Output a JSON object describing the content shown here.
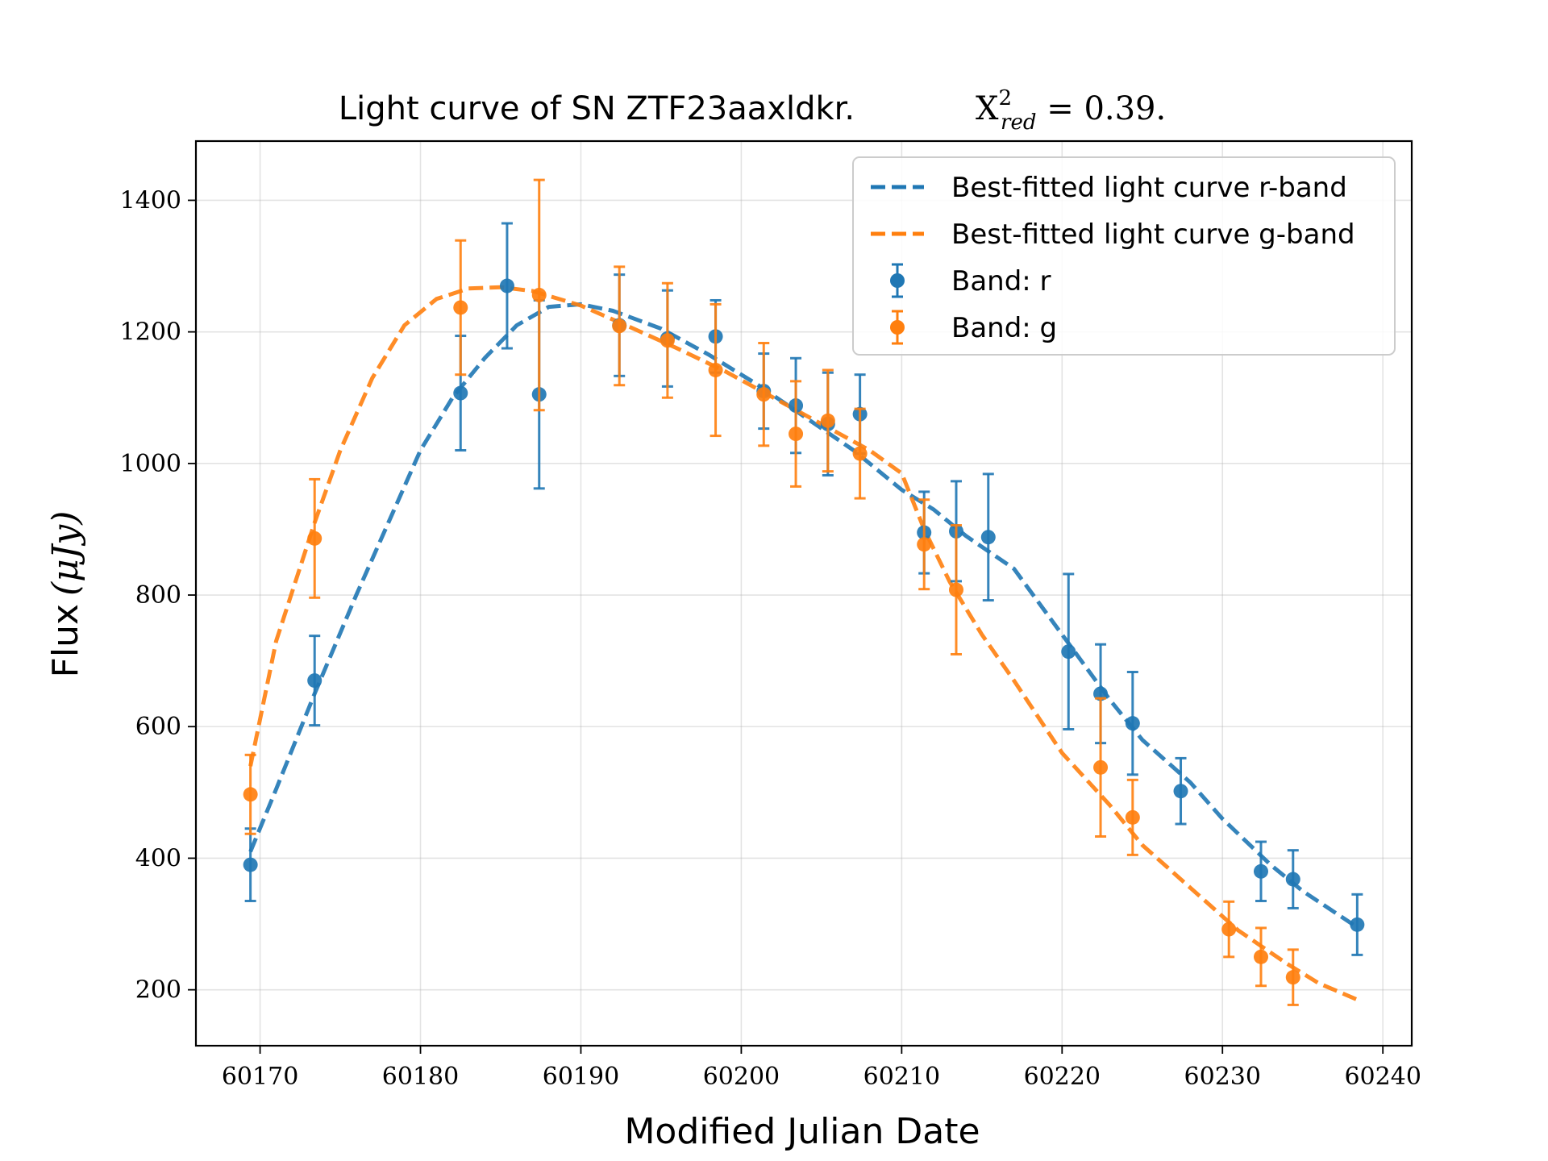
{
  "chart_data": {
    "type": "scatter",
    "title": "Light curve of SN ZTF23aaxldkr.",
    "title_stat": {
      "symbol": "X",
      "sup": "2",
      "sub": "red",
      "rest": " = 0.39."
    },
    "xlabel": "Modified Julian Date",
    "ylabel": "Flux",
    "ylabel_unit": "(μJy)",
    "xlim": [
      60166,
      60241.8
    ],
    "ylim": [
      115,
      1490
    ],
    "xticks": [
      60170,
      60180,
      60190,
      60200,
      60210,
      60220,
      60230,
      60240
    ],
    "yticks": [
      200,
      400,
      600,
      800,
      1000,
      1200,
      1400
    ],
    "grid": true,
    "legend_position": "top-right",
    "colors": {
      "r": "#1f77b4",
      "g": "#ff7f0e"
    },
    "legend": [
      {
        "label": "Best-fitted light curve r-band",
        "kind": "line",
        "series": "r"
      },
      {
        "label": "Best-fitted light curve g-band",
        "kind": "line",
        "series": "g"
      },
      {
        "label": "Band: r",
        "kind": "errorbar",
        "series": "r"
      },
      {
        "label": "Band: g",
        "kind": "errorbar",
        "series": "g"
      }
    ],
    "fits": {
      "r": [
        [
          60169.4,
          410
        ],
        [
          60171,
          505
        ],
        [
          60173.4,
          650
        ],
        [
          60176,
          800
        ],
        [
          60178,
          910
        ],
        [
          60180,
          1020
        ],
        [
          60182,
          1100
        ],
        [
          60184,
          1160
        ],
        [
          60186,
          1210
        ],
        [
          60188,
          1238
        ],
        [
          60190,
          1242
        ],
        [
          60192,
          1232
        ],
        [
          60195,
          1205
        ],
        [
          60198,
          1165
        ],
        [
          60201,
          1120
        ],
        [
          60204,
          1070
        ],
        [
          60207,
          1020
        ],
        [
          60210,
          960
        ],
        [
          60212,
          930
        ],
        [
          60214,
          890
        ],
        [
          60217,
          840
        ],
        [
          60220,
          740
        ],
        [
          60223,
          640
        ],
        [
          60225,
          580
        ],
        [
          60228,
          515
        ],
        [
          60230,
          460
        ],
        [
          60233,
          390
        ],
        [
          60235,
          350
        ],
        [
          60238.4,
          295
        ]
      ],
      "g": [
        [
          60169.4,
          540
        ],
        [
          60171,
          730
        ],
        [
          60173.4,
          910
        ],
        [
          60175,
          1020
        ],
        [
          60177,
          1130
        ],
        [
          60179,
          1210
        ],
        [
          60181,
          1250
        ],
        [
          60183,
          1266
        ],
        [
          60185,
          1268
        ],
        [
          60187,
          1262
        ],
        [
          60190,
          1240
        ],
        [
          60193,
          1208
        ],
        [
          60196,
          1175
        ],
        [
          60199,
          1140
        ],
        [
          60202,
          1100
        ],
        [
          60205,
          1060
        ],
        [
          60208,
          1020
        ],
        [
          60210,
          985
        ],
        [
          60211.4,
          900
        ],
        [
          60213,
          820
        ],
        [
          60215,
          740
        ],
        [
          60217,
          670
        ],
        [
          60220,
          560
        ],
        [
          60223,
          480
        ],
        [
          60225,
          420
        ],
        [
          60228,
          355
        ],
        [
          60231,
          290
        ],
        [
          60234,
          240
        ],
        [
          60236,
          210
        ],
        [
          60238.4,
          185
        ]
      ]
    },
    "series": [
      {
        "band": "r",
        "points": [
          {
            "x": 60169.4,
            "y": 390,
            "err": 55
          },
          {
            "x": 60173.4,
            "y": 670,
            "err": 68
          },
          {
            "x": 60182.5,
            "y": 1107,
            "err": 87
          },
          {
            "x": 60185.4,
            "y": 1270,
            "err": 95
          },
          {
            "x": 60187.4,
            "y": 1105,
            "err": 143
          },
          {
            "x": 60192.4,
            "y": 1210,
            "err": 77
          },
          {
            "x": 60195.4,
            "y": 1190,
            "err": 73
          },
          {
            "x": 60198.4,
            "y": 1193,
            "err": 55
          },
          {
            "x": 60201.4,
            "y": 1110,
            "err": 57
          },
          {
            "x": 60203.4,
            "y": 1088,
            "err": 72
          },
          {
            "x": 60205.4,
            "y": 1060,
            "err": 78
          },
          {
            "x": 60207.4,
            "y": 1075,
            "err": 60
          },
          {
            "x": 60211.4,
            "y": 895,
            "err": 62
          },
          {
            "x": 60213.4,
            "y": 897,
            "err": 76
          },
          {
            "x": 60215.4,
            "y": 888,
            "err": 96
          },
          {
            "x": 60220.4,
            "y": 714,
            "err": 118
          },
          {
            "x": 60222.4,
            "y": 650,
            "err": 75
          },
          {
            "x": 60224.4,
            "y": 605,
            "err": 78
          },
          {
            "x": 60227.4,
            "y": 502,
            "err": 50
          },
          {
            "x": 60232.4,
            "y": 380,
            "err": 45
          },
          {
            "x": 60234.4,
            "y": 368,
            "err": 44
          },
          {
            "x": 60238.4,
            "y": 299,
            "err": 46
          }
        ]
      },
      {
        "band": "g",
        "points": [
          {
            "x": 60169.4,
            "y": 497,
            "err": 60
          },
          {
            "x": 60173.4,
            "y": 886,
            "err": 90
          },
          {
            "x": 60182.5,
            "y": 1237,
            "err": 102
          },
          {
            "x": 60187.4,
            "y": 1256,
            "err": 175
          },
          {
            "x": 60192.4,
            "y": 1209,
            "err": 90
          },
          {
            "x": 60195.4,
            "y": 1187,
            "err": 87
          },
          {
            "x": 60198.4,
            "y": 1142,
            "err": 100
          },
          {
            "x": 60201.4,
            "y": 1105,
            "err": 78
          },
          {
            "x": 60203.4,
            "y": 1045,
            "err": 80
          },
          {
            "x": 60205.4,
            "y": 1065,
            "err": 77
          },
          {
            "x": 60207.4,
            "y": 1015,
            "err": 68
          },
          {
            "x": 60211.4,
            "y": 877,
            "err": 68
          },
          {
            "x": 60213.4,
            "y": 808,
            "err": 98
          },
          {
            "x": 60222.4,
            "y": 538,
            "err": 105
          },
          {
            "x": 60224.4,
            "y": 462,
            "err": 57
          },
          {
            "x": 60230.4,
            "y": 292,
            "err": 42
          },
          {
            "x": 60232.4,
            "y": 250,
            "err": 44
          },
          {
            "x": 60234.4,
            "y": 219,
            "err": 42
          }
        ]
      }
    ]
  }
}
